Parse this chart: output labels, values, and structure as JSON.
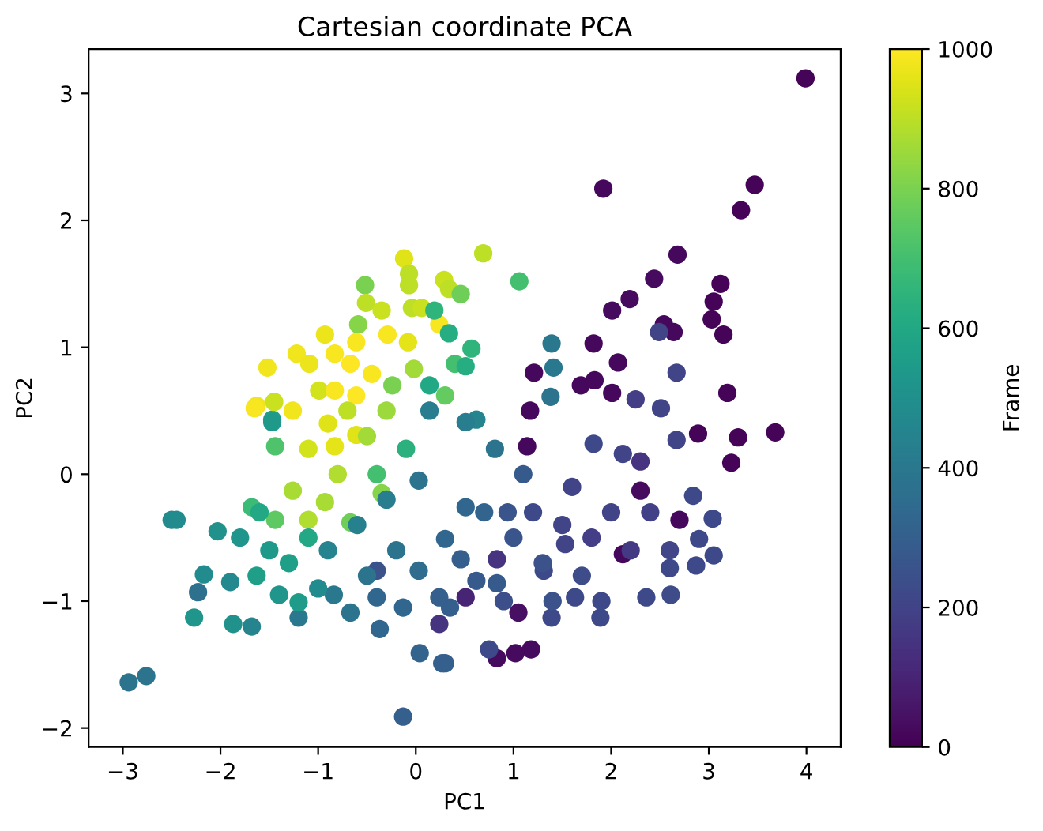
{
  "chart_data": {
    "type": "scatter",
    "title": "Cartesian coordinate PCA",
    "xlabel": "PC1",
    "ylabel": "PC2",
    "clabel": "Frame",
    "x": [
      3.99,
      1.92,
      3.47,
      3.33,
      2.68,
      2.44,
      2.19,
      2.01,
      3.12,
      3.05,
      3.03,
      3.15,
      2.54,
      2.64,
      2.49,
      1.39,
      1.82,
      1.41,
      1.21,
      2.07,
      2.67,
      3.19,
      1.69,
      1.83,
      1.38,
      1.17,
      2.01,
      2.25,
      2.51,
      3.68,
      1.06,
      0.69,
      3.23,
      3.3,
      2.89,
      2.67,
      3.04,
      3.05,
      2.61,
      2.6,
      2.87,
      2.9,
      2.84,
      2.7,
      2.36,
      1.89,
      1.39,
      1.18,
      1.02,
      0.83,
      0.75,
      0.3,
      1.53,
      1.14,
      1.82,
      2.12,
      2.3,
      2.12,
      0.81,
      0.62,
      0.46,
      0.35,
      0.62,
      0.83,
      1.05,
      1.63,
      1.31,
      0.94,
      -2.94,
      -2.76,
      -0.13,
      -2.5,
      -2.45,
      -2.27,
      -2.23,
      -2.03,
      -2.17,
      -1.87,
      -1.68,
      -1.2,
      -0.67,
      -0.37,
      0.04,
      0.27,
      -0.13,
      -0.4,
      -0.84,
      -1.2,
      -0.4,
      0.24,
      -1.63,
      -1.44,
      -1.1,
      -0.93,
      -0.67,
      -0.35,
      -0.83,
      -0.61,
      -1.63,
      -1.44,
      -1.47,
      -1.26,
      -1.68,
      0.03,
      0.51,
      0.03,
      0.3,
      0.83,
      0.51,
      0.24,
      -0.12,
      -0.07,
      -0.07,
      -0.52,
      0.29,
      0.34,
      0.46,
      -0.51,
      -0.35,
      -0.04,
      0.06,
      0.24,
      0.19,
      0.34,
      -0.59,
      -0.93,
      0.57,
      -1.52,
      -1.22,
      -1.09,
      -1.65,
      -1.45,
      -0.83,
      -0.29,
      -0.08,
      -0.61,
      -1.47,
      -1.26,
      -0.99,
      -0.67,
      -0.45,
      -0.02,
      0.14,
      0.4,
      0.51,
      0.3,
      0.14,
      0.51,
      -0.24,
      -0.83,
      -0.61,
      -1.8,
      -1.5,
      -1.3,
      -1.1,
      -1.6,
      -1.9,
      -1.4,
      -0.9,
      -0.6,
      -0.3,
      -0.5,
      -1.0,
      -0.2,
      -0.9,
      -0.7,
      -0.5,
      -1.1,
      -0.3,
      -0.8,
      -0.4,
      -0.1,
      1.2,
      1.5,
      1.8,
      2.0,
      1.3,
      1.7,
      2.2,
      1.0,
      1.6,
      2.4,
      1.9,
      1.4,
      2.6,
      2.3,
      1.1,
      0.7,
      0.9
    ],
    "values": [
      3.12,
      2.25,
      2.28,
      2.08,
      1.73,
      1.54,
      1.38,
      1.29,
      1.5,
      1.36,
      1.22,
      1.1,
      1.18,
      1.12,
      1.12,
      1.03,
      1.03,
      0.84,
      0.8,
      0.88,
      0.8,
      0.64,
      0.7,
      0.74,
      0.61,
      0.5,
      0.64,
      0.59,
      0.52,
      0.33,
      1.52,
      1.74,
      0.09,
      0.29,
      0.32,
      0.27,
      -0.35,
      -0.64,
      -0.95,
      -0.74,
      -0.72,
      -0.51,
      -0.17,
      -0.36,
      -0.97,
      -1.13,
      -1.13,
      -1.38,
      -1.41,
      -1.45,
      -1.38,
      -1.49,
      -0.55,
      0.22,
      0.24,
      -0.63,
      -0.13,
      0.16,
      0.2,
      0.43,
      -0.67,
      -1.05,
      -0.84,
      -0.86,
      -1.09,
      -0.97,
      -0.76,
      -0.3,
      -1.64,
      -1.59,
      -1.91,
      -0.36,
      -0.36,
      -1.13,
      -0.93,
      -0.45,
      -0.79,
      -1.18,
      -1.2,
      -1.13,
      -1.09,
      -1.22,
      -1.41,
      -1.49,
      -1.05,
      -0.97,
      -0.95,
      -1.01,
      -0.76,
      -1.18,
      -0.8,
      -0.36,
      -0.36,
      -0.22,
      -0.38,
      -0.15,
      0.22,
      0.31,
      0.54,
      0.22,
      0.43,
      -0.13,
      -0.26,
      -0.05,
      -0.26,
      -0.76,
      -0.51,
      -0.67,
      -0.97,
      -0.97,
      1.7,
      1.58,
      1.49,
      1.49,
      1.53,
      1.46,
      1.42,
      1.35,
      1.29,
      1.31,
      1.31,
      1.18,
      1.29,
      1.11,
      1.18,
      1.1,
      0.99,
      0.84,
      0.95,
      0.87,
      0.52,
      0.57,
      0.95,
      1.1,
      1.04,
      1.04,
      0.41,
      0.5,
      0.66,
      0.87,
      0.79,
      0.83,
      0.7,
      0.87,
      0.85,
      0.62,
      0.5,
      0.41,
      0.7,
      0.66,
      0.62,
      -0.5,
      -0.6,
      -0.7,
      -0.5,
      -0.3,
      -0.85,
      -0.95,
      -0.6,
      -0.4,
      -0.2,
      -0.8,
      -0.9,
      -0.6,
      0.4,
      0.5,
      0.3,
      0.2,
      0.5,
      0.0,
      0.0,
      0.2,
      -0.3,
      -0.4,
      -0.5,
      -0.3,
      -0.7,
      -0.8,
      -0.6,
      -0.5,
      -0.1,
      -0.3,
      -1.0,
      -1.0,
      -0.6,
      0.1,
      0.0,
      -0.3,
      -1.0
    ],
    "cvalues": [
      10,
      20,
      10,
      10,
      20,
      30,
      30,
      30,
      10,
      10,
      10,
      10,
      20,
      20,
      200,
      400,
      20,
      400,
      20,
      20,
      200,
      10,
      20,
      20,
      380,
      20,
      20,
      180,
      200,
      10,
      700,
      900,
      10,
      10,
      10,
      200,
      220,
      220,
      230,
      220,
      220,
      220,
      220,
      20,
      220,
      220,
      220,
      30,
      30,
      30,
      220,
      300,
      200,
      20,
      220,
      20,
      30,
      200,
      380,
      450,
      300,
      300,
      280,
      280,
      40,
      220,
      220,
      260,
      380,
      380,
      300,
      480,
      480,
      520,
      370,
      500,
      480,
      500,
      450,
      400,
      380,
      330,
      320,
      300,
      330,
      330,
      400,
      550,
      250,
      150,
      560,
      750,
      880,
      870,
      780,
      820,
      960,
      950,
      980,
      720,
      560,
      870,
      680,
      380,
      330,
      350,
      330,
      150,
      100,
      300,
      950,
      900,
      900,
      800,
      920,
      900,
      780,
      900,
      920,
      900,
      920,
      990,
      650,
      620,
      820,
      970,
      650,
      980,
      980,
      970,
      990,
      920,
      990,
      990,
      960,
      990,
      540,
      980,
      930,
      1000,
      990,
      860,
      600,
      700,
      620,
      760,
      420,
      420,
      800,
      990,
      1000,
      520,
      540,
      560,
      600,
      600,
      470,
      520,
      450,
      430,
      420,
      380,
      480,
      380,
      950,
      900,
      860,
      930,
      850,
      880,
      700,
      640,
      220,
      200,
      180,
      200,
      250,
      230,
      170,
      260,
      200,
      190,
      220,
      250,
      210,
      150,
      280,
      320,
      240
    ],
    "clim": [
      0,
      1000
    ],
    "cticks": [
      0,
      200,
      400,
      600,
      800,
      1000
    ],
    "xlim": [
      -3.35,
      4.35
    ],
    "ylim": [
      -2.15,
      3.35
    ],
    "xticks": [
      {
        "value": -3,
        "label": "−3"
      },
      {
        "value": -2,
        "label": "−2"
      },
      {
        "value": -1,
        "label": "−1"
      },
      0,
      1,
      2,
      3,
      4
    ],
    "yticks": [
      {
        "value": -2,
        "label": "−2"
      },
      {
        "value": -1,
        "label": "−1"
      },
      0,
      1,
      2,
      3
    ],
    "marker": "circle"
  }
}
